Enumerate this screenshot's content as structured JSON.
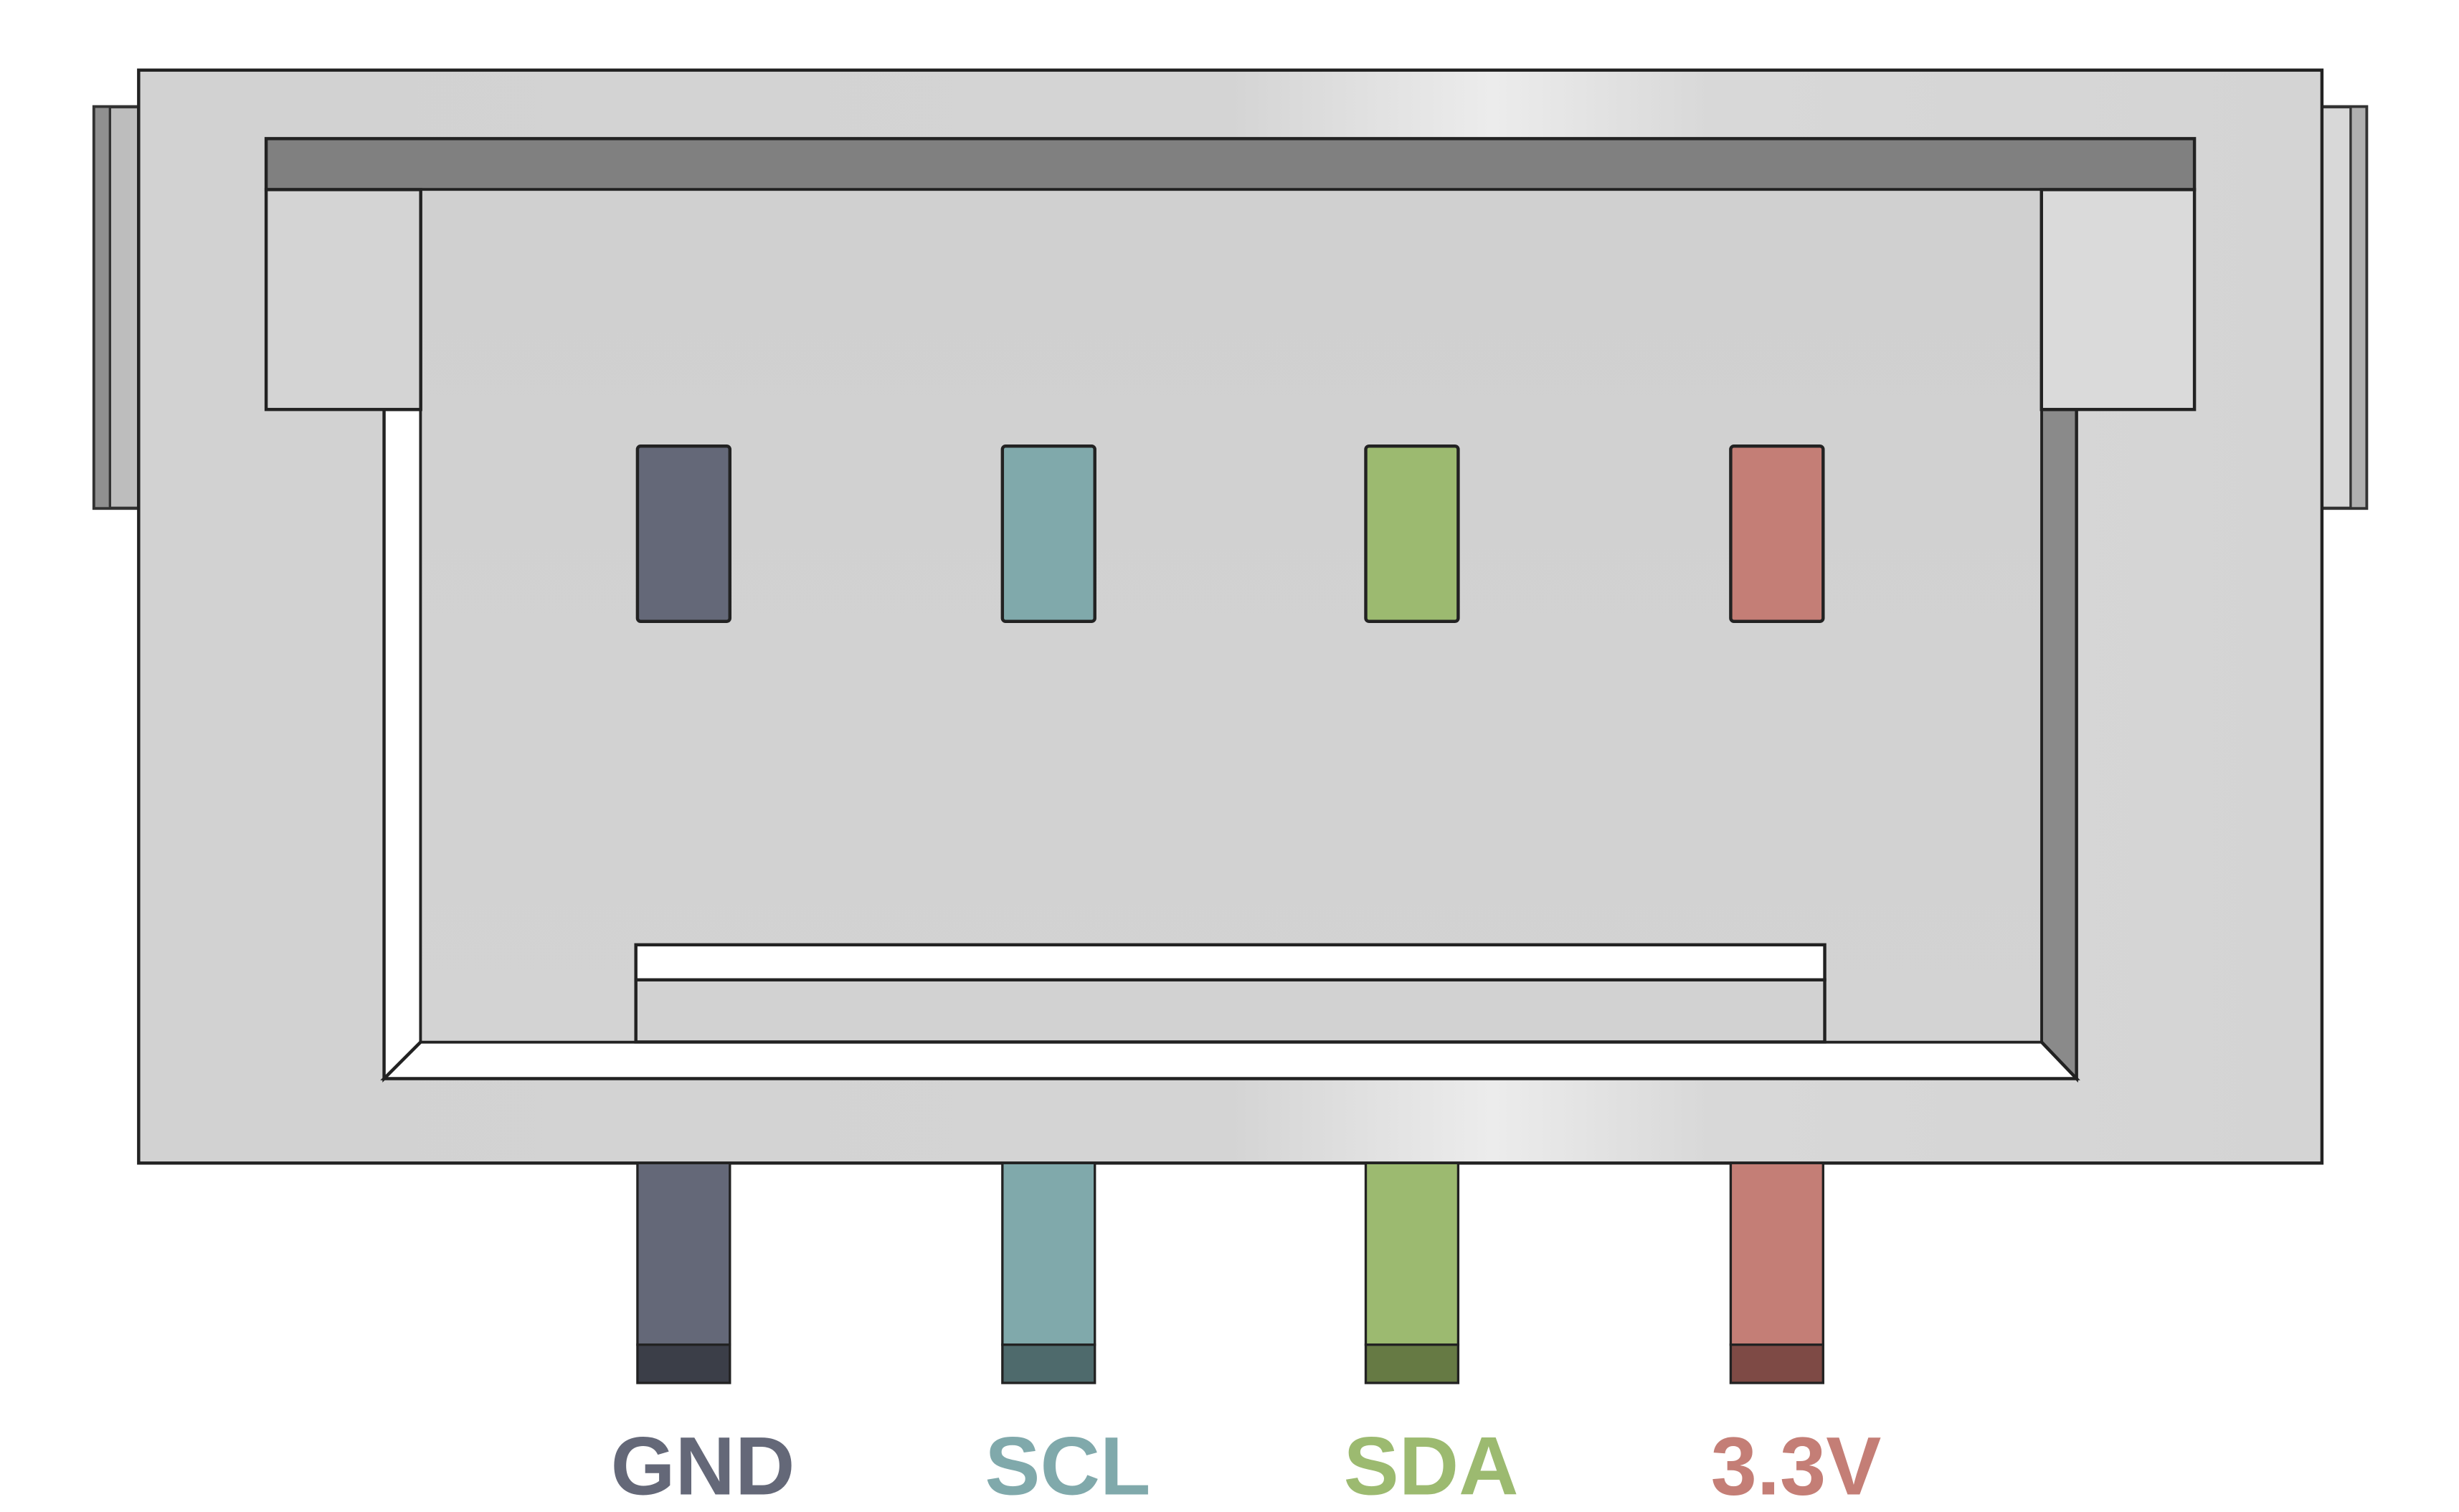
{
  "connector": {
    "body_color": "#d6d6d6",
    "dark_slot_color": "#808080",
    "outline_color": "#222222"
  },
  "pins": [
    {
      "label": "GND",
      "color": "#646878",
      "tip_color": "#3b3e48"
    },
    {
      "label": "SCL",
      "color": "#80a9ab",
      "tip_color": "#4e6a6c"
    },
    {
      "label": "SDA",
      "color": "#9cba70",
      "tip_color": "#667a44"
    },
    {
      "label": "3.3V",
      "color": "#c47e76",
      "tip_color": "#7e4a45"
    }
  ]
}
